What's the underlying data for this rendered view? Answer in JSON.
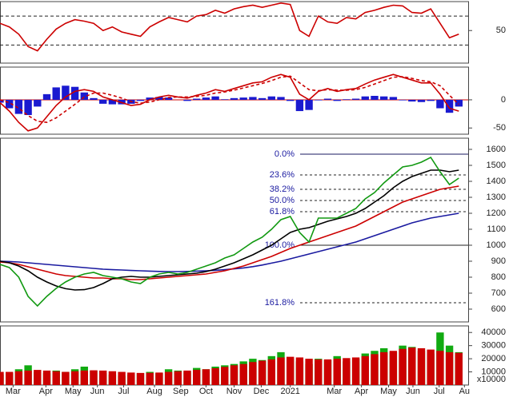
{
  "chart_data": [
    {
      "type": "line",
      "ylim": [
        5,
        90
      ],
      "yticks": [
        50
      ],
      "ref_lines": [
        30,
        70
      ],
      "ref_color": "#222222",
      "ref_dash": true,
      "series": [
        {
          "color": "#cc0000",
          "values": [
            60,
            55,
            45,
            28,
            22,
            38,
            52,
            60,
            65,
            63,
            60,
            50,
            55,
            48,
            45,
            42,
            55,
            62,
            68,
            65,
            62,
            70,
            72,
            78,
            74,
            80,
            83,
            85,
            82,
            85,
            88,
            86,
            50,
            42,
            70,
            62,
            60,
            68,
            66,
            75,
            78,
            82,
            85,
            84,
            75,
            74,
            80,
            60,
            40,
            45
          ]
        }
      ]
    },
    {
      "type": "line",
      "ylim": [
        -61,
        58
      ],
      "yticks": [
        0,
        -50
      ],
      "ref_lines": [
        0
      ],
      "ref_color": "#cc0000",
      "ref_dash": false,
      "series": [
        {
          "type": "bar",
          "color": "#1a1ad0",
          "values": [
            -5,
            -15,
            -25,
            -27,
            -12,
            10,
            22,
            25,
            23,
            13,
            3,
            -7,
            -8,
            -8,
            -7,
            -2,
            4,
            5,
            4,
            0,
            -2,
            2,
            4,
            6,
            1,
            3,
            4,
            5,
            3,
            6,
            5,
            -2,
            -20,
            -18,
            -1,
            2,
            -2,
            1,
            2,
            6,
            7,
            6,
            5,
            -1,
            -3,
            -4,
            -2,
            -15,
            -23,
            -12
          ]
        },
        {
          "color": "#cc0000",
          "values": [
            -5,
            -20,
            -40,
            -55,
            -50,
            -30,
            -10,
            5,
            15,
            18,
            15,
            5,
            0,
            -5,
            -10,
            -8,
            0,
            5,
            8,
            5,
            3,
            8,
            12,
            18,
            15,
            20,
            25,
            30,
            32,
            40,
            45,
            40,
            10,
            0,
            15,
            20,
            15,
            18,
            20,
            28,
            35,
            40,
            45,
            40,
            35,
            30,
            30,
            10,
            -15,
            -20
          ]
        },
        {
          "color": "#cc0000",
          "dash": true,
          "values": [
            0,
            -5,
            -15,
            -28,
            -38,
            -40,
            -32,
            -20,
            -8,
            5,
            12,
            12,
            8,
            3,
            -3,
            -6,
            -4,
            0,
            4,
            5,
            5,
            6,
            8,
            12,
            14,
            17,
            21,
            25,
            29,
            34,
            40,
            42,
            30,
            18,
            16,
            18,
            17,
            17,
            18,
            22,
            28,
            34,
            40,
            41,
            38,
            34,
            32,
            25,
            8,
            -8
          ]
        }
      ]
    },
    {
      "type": "line",
      "ylim": [
        520,
        1670
      ],
      "yticks": [
        600,
        700,
        800,
        900,
        1000,
        1100,
        1200,
        1300,
        1400,
        1500,
        1600
      ],
      "fib_levels": [
        {
          "label": "0.0%",
          "value": 1570,
          "color": "#1a1a60",
          "dash": false
        },
        {
          "label": "23.6%",
          "value": 1440,
          "color": "#222222",
          "dash": true
        },
        {
          "label": "38.2%",
          "value": 1350,
          "color": "#222222",
          "dash": true
        },
        {
          "label": "50.0%",
          "value": 1280,
          "color": "#222222",
          "dash": true
        },
        {
          "label": "61.8%",
          "value": 1210,
          "color": "#222222",
          "dash": true
        },
        {
          "label": "100.0%",
          "value": 1000,
          "color": "#222222",
          "dash": false
        },
        {
          "label": "161.8%",
          "value": 640,
          "color": "#222222",
          "dash": true
        }
      ],
      "series": [
        {
          "color": "#1a1aa0",
          "values": [
            900,
            898,
            895,
            890,
            885,
            880,
            875,
            870,
            865,
            860,
            855,
            850,
            847,
            845,
            842,
            840,
            838,
            836,
            835,
            835,
            836,
            838,
            840,
            843,
            847,
            852,
            858,
            866,
            876,
            888,
            900,
            915,
            930,
            945,
            960,
            975,
            990,
            1005,
            1020,
            1040,
            1060,
            1080,
            1100,
            1120,
            1140,
            1155,
            1170,
            1180,
            1190,
            1200
          ]
        },
        {
          "color": "#cc0000",
          "values": [
            895,
            890,
            880,
            865,
            850,
            835,
            820,
            810,
            805,
            800,
            795,
            795,
            790,
            790,
            785,
            785,
            790,
            795,
            800,
            805,
            810,
            815,
            820,
            830,
            840,
            855,
            870,
            890,
            910,
            930,
            955,
            980,
            1000,
            1020,
            1040,
            1060,
            1080,
            1100,
            1120,
            1150,
            1180,
            1210,
            1240,
            1270,
            1290,
            1310,
            1330,
            1350,
            1360,
            1370
          ]
        },
        {
          "color": "#000000",
          "values": [
            900,
            890,
            870,
            840,
            800,
            770,
            745,
            728,
            720,
            722,
            735,
            760,
            790,
            800,
            805,
            800,
            800,
            805,
            810,
            815,
            820,
            825,
            835,
            850,
            870,
            890,
            915,
            940,
            970,
            1000,
            1040,
            1080,
            1100,
            1110,
            1130,
            1150,
            1165,
            1180,
            1200,
            1230,
            1270,
            1310,
            1360,
            1400,
            1430,
            1450,
            1470,
            1470,
            1460,
            1470
          ]
        },
        {
          "color": "#119911",
          "values": [
            880,
            860,
            800,
            680,
            620,
            680,
            730,
            770,
            800,
            820,
            830,
            810,
            800,
            790,
            770,
            760,
            800,
            820,
            830,
            820,
            830,
            850,
            870,
            890,
            920,
            940,
            980,
            1020,
            1050,
            1100,
            1160,
            1180,
            1080,
            1020,
            1170,
            1170,
            1170,
            1200,
            1230,
            1290,
            1330,
            1390,
            1440,
            1490,
            1500,
            1520,
            1550,
            1460,
            1380,
            1420
          ]
        }
      ]
    },
    {
      "type": "bar",
      "ylim": [
        0,
        45000
      ],
      "yticks": [
        10000,
        20000,
        30000,
        40000
      ],
      "unit_label": "x10000",
      "xlim": [
        0,
        50
      ],
      "xticks": [
        {
          "value": 1.4,
          "label": "Mar"
        },
        {
          "value": 4.9,
          "label": "Apr"
        },
        {
          "value": 7.8,
          "label": "May"
        },
        {
          "value": 10.4,
          "label": "Jun"
        },
        {
          "value": 13.2,
          "label": "Jul"
        },
        {
          "value": 16.5,
          "label": "Aug"
        },
        {
          "value": 19.3,
          "label": "Sep"
        },
        {
          "value": 22,
          "label": "Oct"
        },
        {
          "value": 25,
          "label": "Nov"
        },
        {
          "value": 27.9,
          "label": "Dec"
        },
        {
          "value": 31,
          "label": "2021"
        },
        {
          "value": 35.7,
          "label": "Mar"
        },
        {
          "value": 38.6,
          "label": "Apr"
        },
        {
          "value": 41.5,
          "label": "May"
        },
        {
          "value": 44.1,
          "label": "Jun"
        },
        {
          "value": 46.9,
          "label": "Jul"
        },
        {
          "value": 49.6,
          "label": "Au"
        }
      ],
      "series": [
        {
          "type": "bar",
          "color": "#11aa11",
          "values": [
            8000,
            9000,
            12000,
            15000,
            10000,
            9000,
            11000,
            10000,
            12000,
            14000,
            11000,
            9000,
            8000,
            7000,
            8000,
            9000,
            10000,
            9000,
            12000,
            11000,
            10000,
            13000,
            12000,
            14000,
            15000,
            16000,
            18000,
            20000,
            19000,
            22000,
            25000,
            20000,
            18000,
            16000,
            20000,
            19000,
            22000,
            18000,
            20000,
            24000,
            26000,
            28000,
            25000,
            30000,
            29000,
            26000,
            24000,
            40000,
            30000,
            25000
          ]
        },
        {
          "color": "#cc0000",
          "values": [
            10000,
            10000,
            10500,
            11000,
            11500,
            11000,
            10500,
            10000,
            10500,
            11000,
            11200,
            11000,
            10500,
            10000,
            9500,
            9200,
            9300,
            9500,
            10000,
            10500,
            11000,
            11500,
            12000,
            12800,
            13800,
            15000,
            16000,
            17500,
            18500,
            19500,
            21000,
            21500,
            21000,
            20000,
            19500,
            19500,
            20000,
            20500,
            21000,
            22000,
            23500,
            25000,
            26000,
            27500,
            28500,
            28000,
            27000,
            26000,
            25000,
            24500
          ]
        }
      ]
    }
  ]
}
